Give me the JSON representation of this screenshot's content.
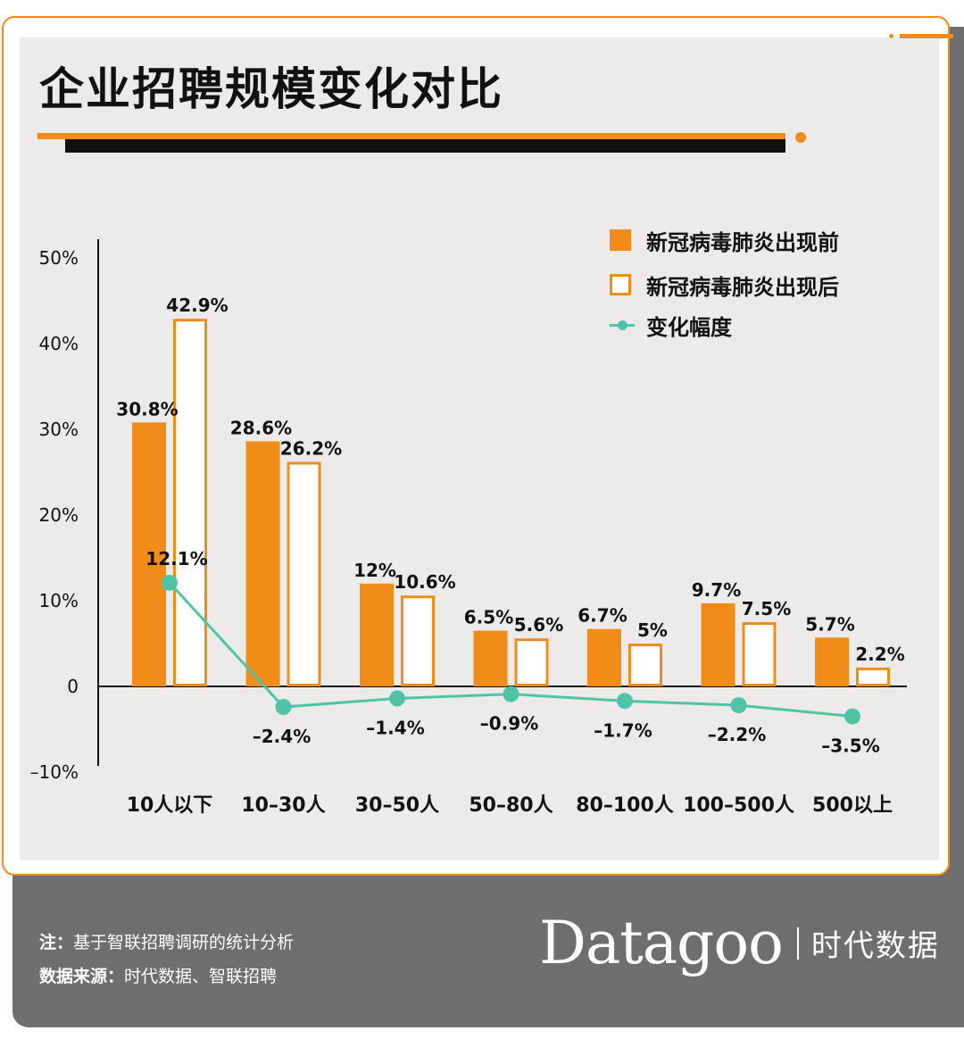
{
  "title": "企业招聘规模变化对比",
  "legend": {
    "before": "新冠病毒肺炎出现前",
    "after": "新冠病毒肺炎出现后",
    "change": "变化幅度"
  },
  "colors": {
    "before": "#f08c1a",
    "after_border": "#f08c1a",
    "change": "#4fc4a5"
  },
  "chart_data": {
    "type": "bar",
    "title": "企业招聘规模变化对比",
    "categories": [
      "10人以下",
      "10–30人",
      "30–50人",
      "50–80人",
      "80–100人",
      "100–500人",
      "500以上"
    ],
    "series": [
      {
        "name": "新冠病毒肺炎出现前",
        "values": [
          30.8,
          28.6,
          12,
          6.5,
          6.7,
          9.7,
          5.7
        ],
        "labels": [
          "30.8%",
          "28.6%",
          "12%",
          "6.5%",
          "6.7%",
          "9.7%",
          "5.7%"
        ]
      },
      {
        "name": "新冠病毒肺炎出现后",
        "values": [
          42.9,
          26.2,
          10.6,
          5.6,
          5,
          7.5,
          2.2
        ],
        "labels": [
          "42.9%",
          "26.2%",
          "10.6%",
          "5.6%",
          "5%",
          "7.5%",
          "2.2%"
        ]
      },
      {
        "name": "变化幅度",
        "type": "line",
        "values": [
          12.1,
          -2.4,
          -1.4,
          -0.9,
          -1.7,
          -2.2,
          -3.5
        ],
        "labels": [
          "12.1%",
          "–2.4%",
          "–1.4%",
          "–0.9%",
          "–1.7%",
          "–2.2%",
          "–3.5%"
        ]
      }
    ],
    "yticks": [
      "50%",
      "40%",
      "30%",
      "20%",
      "10%",
      "0",
      "–10%"
    ],
    "ytick_values": [
      50,
      40,
      30,
      20,
      10,
      0,
      -10
    ],
    "ylim": [
      -10,
      50
    ],
    "legend_position": "top-right",
    "grid": false
  },
  "footer": {
    "note_label": "注：",
    "note_text": "基于智联招聘调研的统计分析",
    "source_label": "数据来源：",
    "source_text": "时代数据、智联招聘",
    "brand_name": "Datagoo",
    "brand_cn": "时代数据"
  }
}
